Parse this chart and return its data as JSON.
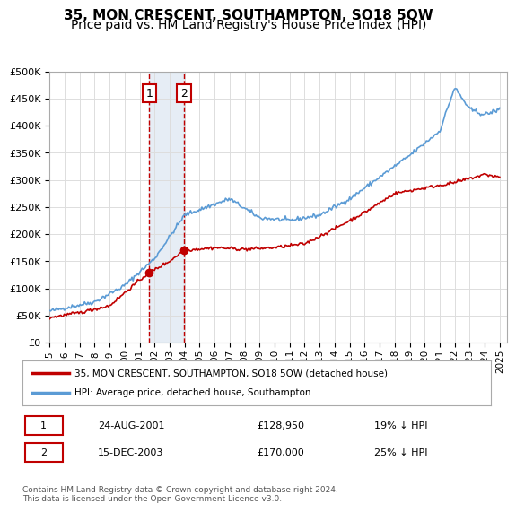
{
  "title": "35, MON CRESCENT, SOUTHAMPTON, SO18 5QW",
  "subtitle": "Price paid vs. HM Land Registry's House Price Index (HPI)",
  "ylim": [
    0,
    500000
  ],
  "yticks": [
    0,
    50000,
    100000,
    150000,
    200000,
    250000,
    300000,
    350000,
    400000,
    450000,
    500000
  ],
  "xlabel_years": [
    "1995",
    "1996",
    "1997",
    "1998",
    "1999",
    "2000",
    "2001",
    "2002",
    "2003",
    "2004",
    "2005",
    "2006",
    "2007",
    "2008",
    "2009",
    "2010",
    "2011",
    "2012",
    "2013",
    "2014",
    "2015",
    "2016",
    "2017",
    "2018",
    "2019",
    "2020",
    "2021",
    "2022",
    "2023",
    "2024",
    "2025"
  ],
  "sale1_date": 2001.645,
  "sale1_price": 128950,
  "sale1_label": "1",
  "sale2_date": 2003.958,
  "sale2_price": 170000,
  "sale2_label": "2",
  "hpi_line_color": "#5b9bd5",
  "price_line_color": "#c00000",
  "shade_color": "#dce6f1",
  "annotation_box_color": "#c00000",
  "grid_color": "#dddddd",
  "bg_color": "#ffffff",
  "legend_label1": "35, MON CRESCENT, SOUTHAMPTON, SO18 5QW (detached house)",
  "legend_label2": "HPI: Average price, detached house, Southampton",
  "table_row1": [
    "1",
    "24-AUG-2001",
    "£128,950",
    "19% ↓ HPI"
  ],
  "table_row2": [
    "2",
    "15-DEC-2003",
    "£170,000",
    "25% ↓ HPI"
  ],
  "footnote": "Contains HM Land Registry data © Crown copyright and database right 2024.\nThis data is licensed under the Open Government Licence v3.0.",
  "title_fontsize": 11,
  "subtitle_fontsize": 10
}
